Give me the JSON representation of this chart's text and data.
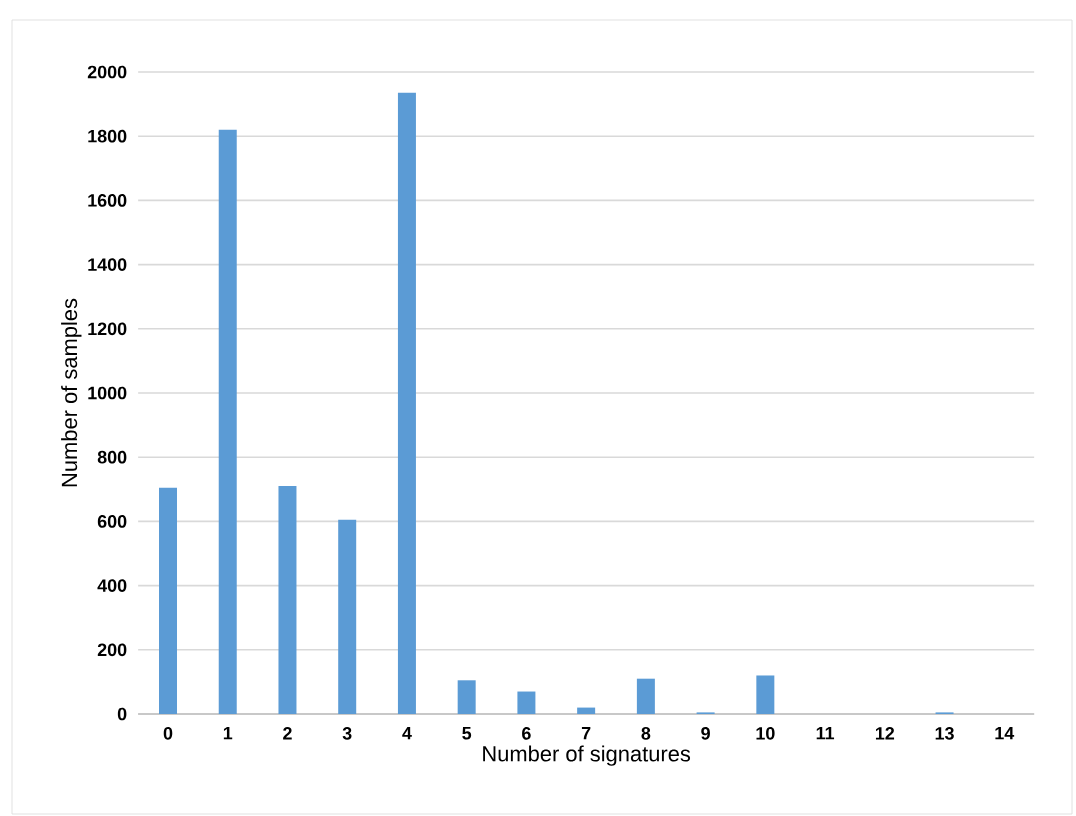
{
  "chart_data": {
    "type": "bar",
    "xlabel": "Number of signatures",
    "ylabel": "Number of samples",
    "categories": [
      "0",
      "1",
      "2",
      "3",
      "4",
      "5",
      "6",
      "7",
      "8",
      "9",
      "10",
      "11",
      "12",
      "13",
      "14"
    ],
    "values": [
      705,
      1820,
      710,
      605,
      1935,
      105,
      70,
      20,
      110,
      5,
      120,
      0,
      0,
      5,
      0
    ],
    "color": "#5b9bd5",
    "ylim": [
      0,
      2000
    ],
    "yticks": [
      0,
      200,
      400,
      600,
      800,
      1000,
      1200,
      1400,
      1600,
      1800,
      2000
    ],
    "grid": "y"
  }
}
